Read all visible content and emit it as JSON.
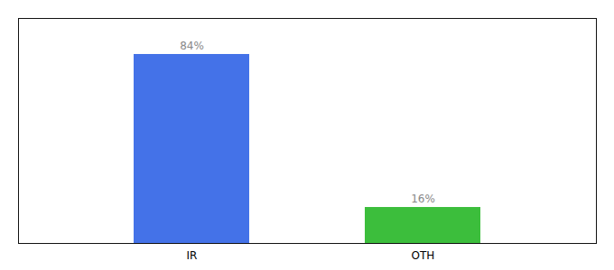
{
  "chart_data": {
    "type": "bar",
    "categories": [
      "IR",
      "OTH"
    ],
    "values": [
      84,
      16
    ],
    "value_labels": [
      "84%",
      "16%"
    ],
    "colors": [
      "#4472e8",
      "#3cbe3c"
    ],
    "ylim": [
      0,
      100
    ],
    "data_labels": true,
    "tick_labels": "x"
  }
}
